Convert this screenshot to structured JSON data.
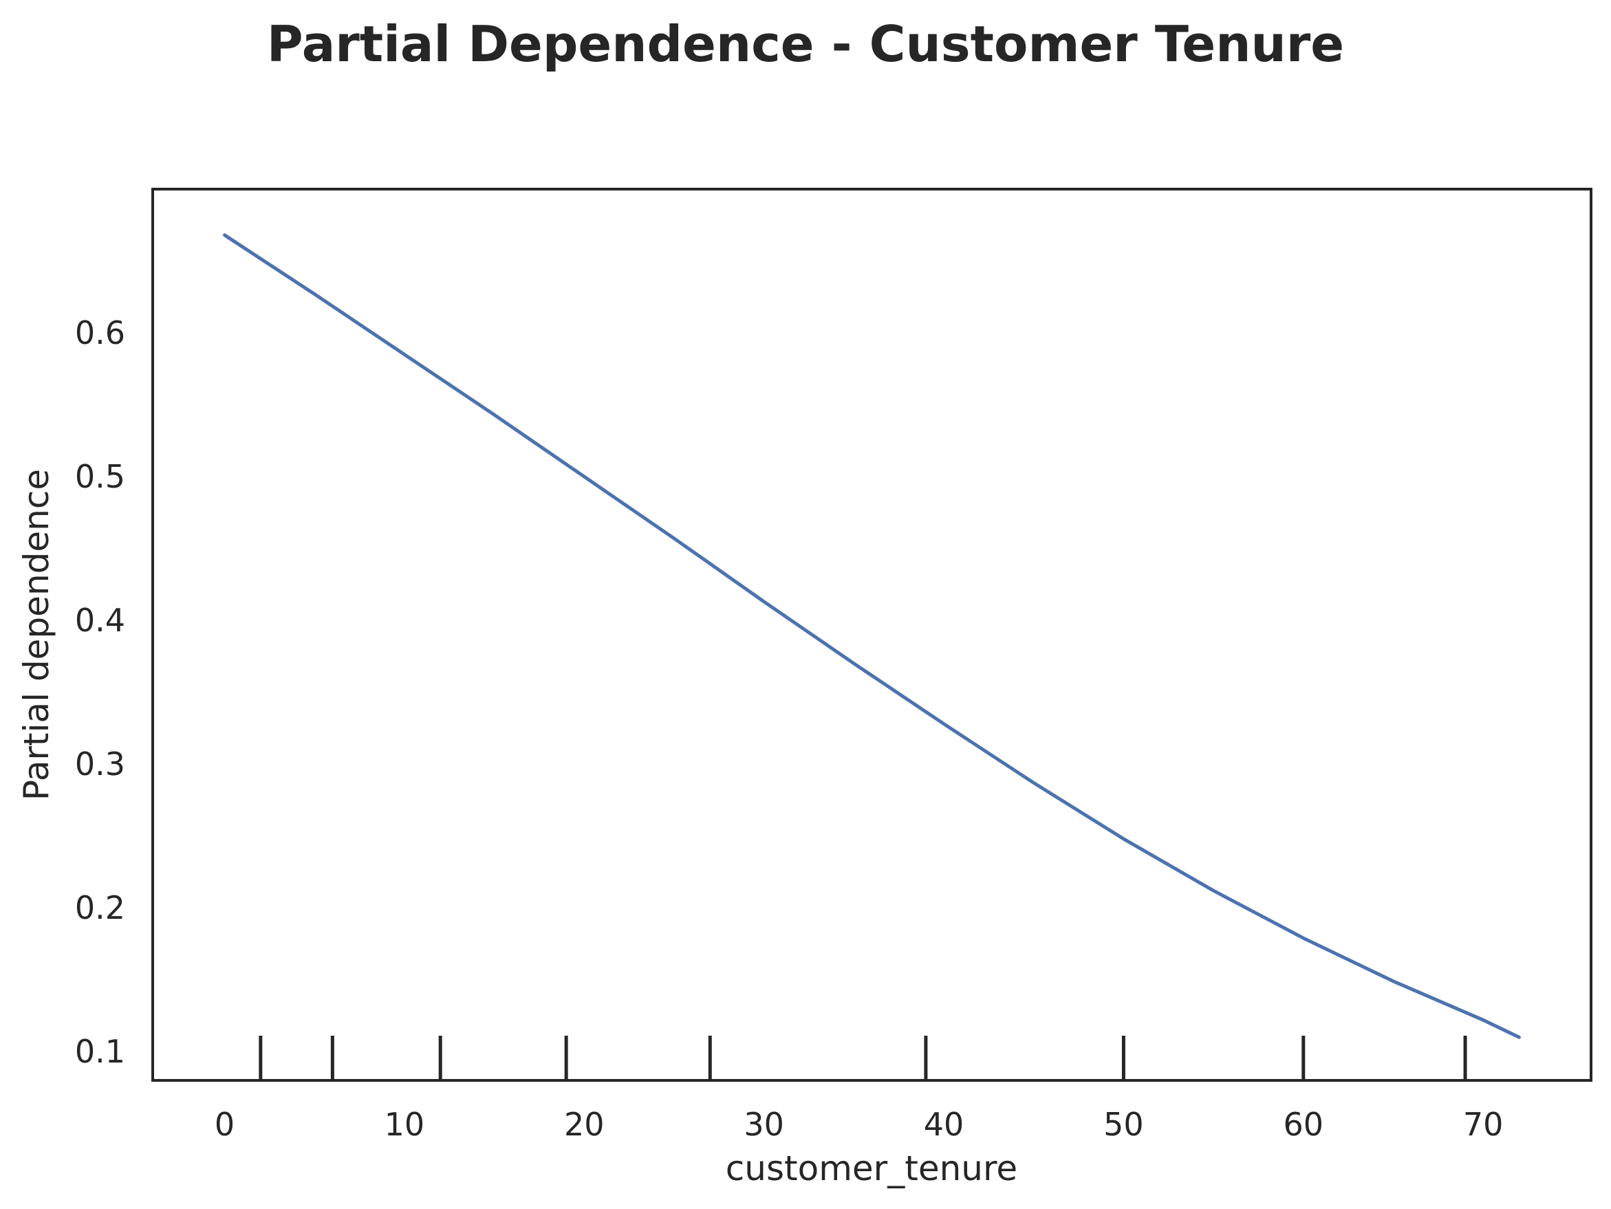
{
  "chart_data": {
    "type": "line",
    "title": "Partial Dependence - Customer Tenure",
    "xlabel": "customer_tenure",
    "ylabel": "Partial dependence",
    "xlim": [
      -4,
      76
    ],
    "ylim": [
      0.08,
      0.7
    ],
    "xticks": [
      0,
      10,
      20,
      30,
      40,
      50,
      60,
      70
    ],
    "yticks": [
      0.1,
      0.2,
      0.3,
      0.4,
      0.5,
      0.6
    ],
    "grid": false,
    "line_color": "#4c72b0",
    "series": [
      {
        "x": [
          0,
          5,
          10,
          15,
          20,
          25,
          30,
          35,
          40,
          45,
          50,
          55,
          60,
          65,
          70,
          72
        ],
        "y": [
          0.668,
          0.627,
          0.585,
          0.543,
          0.5,
          0.457,
          0.413,
          0.37,
          0.328,
          0.287,
          0.248,
          0.212,
          0.179,
          0.149,
          0.122,
          0.11
        ]
      }
    ],
    "rug_x": [
      2,
      6,
      12,
      19,
      27,
      39,
      50,
      60,
      69
    ]
  }
}
